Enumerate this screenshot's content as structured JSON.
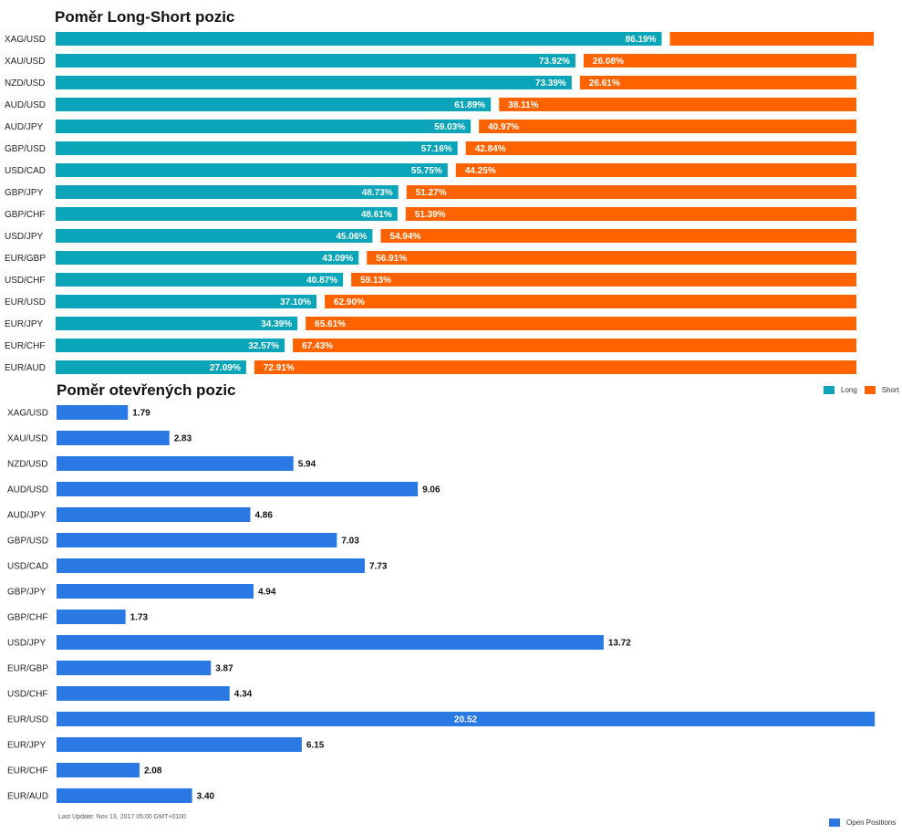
{
  "chart_data": [
    {
      "type": "bar",
      "orientation": "horizontal",
      "stacked": true,
      "title": "Poměr Long-Short pozic",
      "categories": [
        "XAG/USD",
        "XAU/USD",
        "NZD/USD",
        "AUD/USD",
        "AUD/JPY",
        "GBP/USD",
        "USD/CAD",
        "GBP/JPY",
        "GBP/CHF",
        "USD/JPY",
        "EUR/GBP",
        "USD/CHF",
        "EUR/USD",
        "EUR/JPY",
        "EUR/CHF",
        "EUR/AUD"
      ],
      "series": [
        {
          "name": "Long",
          "color": "#0aa5b8",
          "values": [
            86.19,
            73.92,
            73.39,
            61.89,
            59.03,
            57.16,
            55.75,
            48.73,
            48.61,
            45.06,
            43.09,
            40.87,
            37.1,
            34.39,
            32.57,
            27.09
          ],
          "labels": [
            "86.19%",
            "73.92%",
            "73.39%",
            "61.89%",
            "59.03%",
            "57.16%",
            "55.75%",
            "48.73%",
            "48.61%",
            "45.06%",
            "43.09%",
            "40.87%",
            "37.10%",
            "34.39%",
            "32.57%",
            "27.09%"
          ]
        },
        {
          "name": "Short",
          "color": "#ff6300",
          "values": [
            13.81,
            26.08,
            26.61,
            38.11,
            40.97,
            42.84,
            44.25,
            51.27,
            51.39,
            54.94,
            56.91,
            59.13,
            62.9,
            65.61,
            67.43,
            72.91
          ],
          "labels": [
            "",
            "26.08%",
            "26.61%",
            "38.11%",
            "40.97%",
            "42.84%",
            "44.25%",
            "51.27%",
            "51.39%",
            "54.94%",
            "56.91%",
            "59.13%",
            "62.90%",
            "65.61%",
            "67.43%",
            "72.91%"
          ]
        }
      ],
      "legend_position": "bottom-right",
      "grid": false
    },
    {
      "type": "bar",
      "orientation": "horizontal",
      "title": "Poměr otevřených pozic",
      "categories": [
        "XAG/USD",
        "XAU/USD",
        "NZD/USD",
        "AUD/USD",
        "AUD/JPY",
        "GBP/USD",
        "USD/CAD",
        "GBP/JPY",
        "GBP/CHF",
        "USD/JPY",
        "EUR/GBP",
        "USD/CHF",
        "EUR/USD",
        "EUR/JPY",
        "EUR/CHF",
        "EUR/AUD"
      ],
      "series": [
        {
          "name": "Open Positions",
          "color": "#2a78e4",
          "values": [
            1.79,
            2.83,
            5.94,
            9.06,
            4.86,
            7.03,
            7.73,
            4.94,
            1.73,
            13.72,
            3.87,
            4.34,
            20.52,
            6.15,
            2.08,
            3.4
          ],
          "labels": [
            "1.79",
            "2.83",
            "5.94",
            "9.06",
            "4.86",
            "7.03",
            "7.73",
            "4.94",
            "1.73",
            "13.72",
            "3.87",
            "4.34",
            "20.52",
            "6.15",
            "2.08",
            "3.40"
          ]
        }
      ],
      "legend_position": "bottom-right",
      "grid": false
    }
  ],
  "footer": "Last Update: Nov 13, 2017 05:00 GMT+0100",
  "legend": {
    "long": "Long",
    "short": "Short",
    "open": "Open Positions"
  }
}
